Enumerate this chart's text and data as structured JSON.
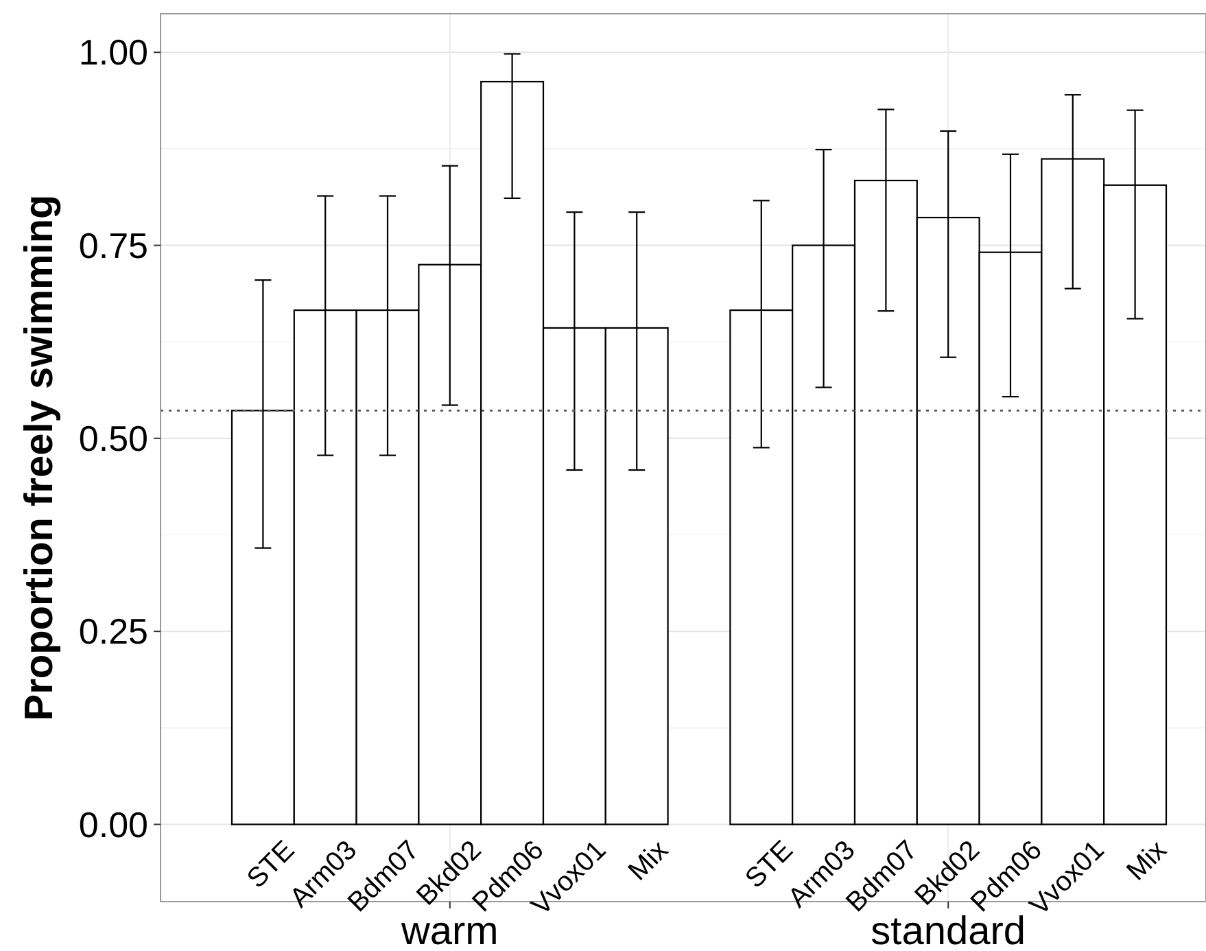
{
  "chart_data": {
    "type": "bar",
    "ylabel": "Proportion freely swimming",
    "categories": [
      "STE",
      "Arm03",
      "Bdm07",
      "Bkd02",
      "Pdm06",
      "Vvox01",
      "Mix",
      null,
      "STE",
      "Arm03",
      "Bdm07",
      "Bkd02",
      "Pdm06",
      "Vvox01",
      "Mix"
    ],
    "values": [
      0.536,
      0.666,
      0.666,
      0.725,
      0.962,
      0.643,
      0.643,
      null,
      0.666,
      0.75,
      0.834,
      0.786,
      0.741,
      0.862,
      0.828
    ],
    "errors": [
      [
        0.358,
        0.705
      ],
      [
        0.478,
        0.814
      ],
      [
        0.478,
        0.814
      ],
      [
        0.543,
        0.853
      ],
      [
        0.811,
        0.998
      ],
      [
        0.459,
        0.793
      ],
      [
        0.459,
        0.793
      ],
      null,
      [
        0.488,
        0.808
      ],
      [
        0.566,
        0.874
      ],
      [
        0.665,
        0.926
      ],
      [
        0.605,
        0.898
      ],
      [
        0.554,
        0.868
      ],
      [
        0.694,
        0.945
      ],
      [
        0.655,
        0.925
      ]
    ],
    "color": "#ffffff",
    "ylim": [
      -0.1,
      1.05
    ],
    "yticks": [
      {
        "value": 0,
        "label": "0.00"
      },
      {
        "value": 0.25,
        "label": "0.25"
      },
      {
        "value": 0.5,
        "label": "0.50"
      },
      {
        "value": 0.75,
        "label": "0.75"
      },
      {
        "value": 1,
        "label": "1.00"
      }
    ],
    "grid": true,
    "ref_lines": [
      {
        "axis": "y",
        "value": 0.536,
        "line_style": "dotted",
        "color": "#555555"
      }
    ],
    "annotations": [
      "warm",
      "standard"
    ]
  }
}
